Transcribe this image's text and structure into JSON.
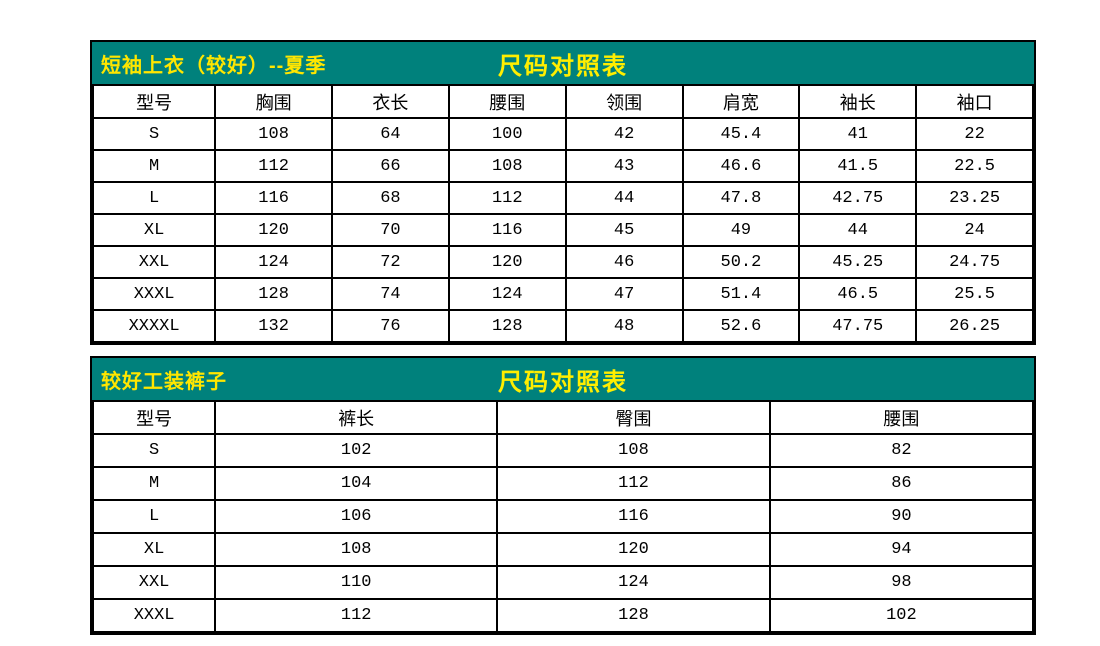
{
  "colors": {
    "band_background": "#00817c",
    "band_title_text": "#ffe600",
    "band_subtitle_text": "#ffee00",
    "table_border": "#000000",
    "cell_background": "#ffffff",
    "cell_text": "#000000"
  },
  "tables": [
    {
      "title": "短袖上衣（较好）--夏季",
      "subtitle": "尺码对照表",
      "columns": [
        "型号",
        "胸围",
        "衣长",
        "腰围",
        "领围",
        "肩宽",
        "袖长",
        "袖口"
      ],
      "rows": [
        [
          "S",
          "108",
          "64",
          "100",
          "42",
          "45.4",
          "41",
          "22"
        ],
        [
          "M",
          "112",
          "66",
          "108",
          "43",
          "46.6",
          "41.5",
          "22.5"
        ],
        [
          "L",
          "116",
          "68",
          "112",
          "44",
          "47.8",
          "42.75",
          "23.25"
        ],
        [
          "XL",
          "120",
          "70",
          "116",
          "45",
          "49",
          "44",
          "24"
        ],
        [
          "XXL",
          "124",
          "72",
          "120",
          "46",
          "50.2",
          "45.25",
          "24.75"
        ],
        [
          "XXXL",
          "128",
          "74",
          "124",
          "47",
          "51.4",
          "46.5",
          "25.5"
        ],
        [
          "XXXXL",
          "132",
          "76",
          "128",
          "48",
          "52.6",
          "47.75",
          "26.25"
        ]
      ]
    },
    {
      "title": "较好工装裤子",
      "subtitle": "尺码对照表",
      "columns": [
        "型号",
        "裤长",
        "臀围",
        "腰围"
      ],
      "rows": [
        [
          "S",
          "102",
          "108",
          "82"
        ],
        [
          "M",
          "104",
          "112",
          "86"
        ],
        [
          "L",
          "106",
          "116",
          "90"
        ],
        [
          "XL",
          "108",
          "120",
          "94"
        ],
        [
          "XXL",
          "110",
          "124",
          "98"
        ],
        [
          "XXXL",
          "112",
          "128",
          "102"
        ]
      ]
    }
  ]
}
